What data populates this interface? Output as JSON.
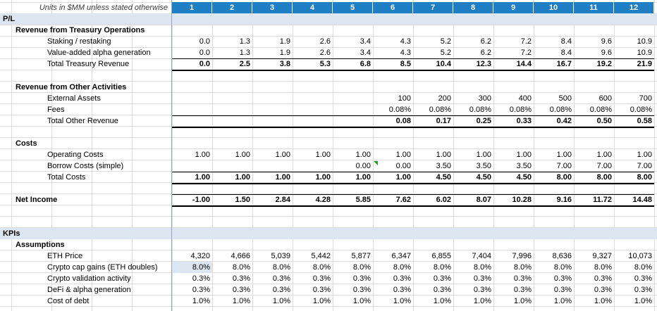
{
  "header": {
    "units_label": "Units in $MM unless stated otherwise",
    "columns": [
      "1",
      "2",
      "3",
      "4",
      "5",
      "6",
      "7",
      "8",
      "9",
      "10",
      "11",
      "12"
    ],
    "header_color": "#1f7fc4"
  },
  "pl": {
    "section_label": "P/L",
    "treasury": {
      "title": "Revenue from Treasury Operations",
      "rows": [
        {
          "label": "Staking / restaking",
          "values": [
            "0.0",
            "1.3",
            "1.9",
            "2.6",
            "3.4",
            "4.3",
            "5.2",
            "6.2",
            "7.2",
            "8.4",
            "9.6",
            "10.9"
          ]
        },
        {
          "label": "Value-added alpha generation",
          "values": [
            "0.0",
            "1.3",
            "1.9",
            "2.6",
            "3.4",
            "4.3",
            "5.2",
            "6.2",
            "7.2",
            "8.4",
            "9.6",
            "10.9"
          ]
        },
        {
          "label": "Total Treasury Revenue",
          "values": [
            "0.0",
            "2.5",
            "3.8",
            "5.3",
            "6.8",
            "8.5",
            "10.4",
            "12.3",
            "14.4",
            "16.7",
            "19.2",
            "21.9"
          ]
        }
      ]
    },
    "other": {
      "title": "Revenue from Other Activities",
      "rows": [
        {
          "label": "External Assets",
          "values": [
            "",
            "",
            "",
            "",
            "",
            "100",
            "200",
            "300",
            "400",
            "500",
            "600",
            "700"
          ]
        },
        {
          "label": "Fees",
          "values": [
            "",
            "",
            "",
            "",
            "",
            "0.08%",
            "0.08%",
            "0.08%",
            "0.08%",
            "0.08%",
            "0.08%",
            "0.08%"
          ]
        },
        {
          "label": "Total Other Revenue",
          "values": [
            "",
            "",
            "",
            "",
            "",
            "0.08",
            "0.17",
            "0.25",
            "0.33",
            "0.42",
            "0.50",
            "0.58"
          ]
        }
      ]
    },
    "costs": {
      "title": "Costs",
      "rows": [
        {
          "label": "Operating Costs",
          "values": [
            "1.00",
            "1.00",
            "1.00",
            "1.00",
            "1.00",
            "1.00",
            "1.00",
            "1.00",
            "1.00",
            "1.00",
            "1.00",
            "1.00"
          ]
        },
        {
          "label": "Borrow Costs (simple)",
          "values": [
            "",
            "",
            "",
            "",
            "0.00",
            "0.00",
            "3.50",
            "3.50",
            "3.50",
            "7.00",
            "7.00",
            "7.00"
          ]
        },
        {
          "label": "Total Costs",
          "values": [
            "1.00",
            "1.00",
            "1.00",
            "1.00",
            "1.00",
            "1.00",
            "4.50",
            "4.50",
            "4.50",
            "8.00",
            "8.00",
            "8.00"
          ]
        }
      ]
    },
    "net_income": {
      "label": "Net Income",
      "values": [
        "-1.00",
        "1.50",
        "2.84",
        "4.28",
        "5.85",
        "7.62",
        "6.02",
        "8.07",
        "10.28",
        "9.16",
        "11.72",
        "14.48"
      ]
    }
  },
  "kpis": {
    "section_label": "KPIs",
    "assumptions": {
      "title": "Assumptions",
      "rows": [
        {
          "label": "ETH Price",
          "values": [
            "4,320",
            "4,666",
            "5,039",
            "5,442",
            "5,877",
            "6,347",
            "6,855",
            "7,404",
            "7,996",
            "8,636",
            "9,327",
            "10,073"
          ]
        },
        {
          "label": "Crypto cap gains (ETH doubles)",
          "values": [
            "8.0%",
            "8.0%",
            "8.0%",
            "8.0%",
            "8.0%",
            "8.0%",
            "8.0%",
            "8.0%",
            "8.0%",
            "8.0%",
            "8.0%",
            "8.0%"
          ]
        },
        {
          "label": "Crypto validation activity",
          "values": [
            "0.3%",
            "0.3%",
            "0.3%",
            "0.3%",
            "0.3%",
            "0.3%",
            "0.3%",
            "0.3%",
            "0.3%",
            "0.3%",
            "0.3%",
            "0.3%"
          ]
        },
        {
          "label": "DeFi & alpha generation",
          "values": [
            "0.3%",
            "0.3%",
            "0.3%",
            "0.3%",
            "0.3%",
            "0.3%",
            "0.3%",
            "0.3%",
            "0.3%",
            "0.3%",
            "0.3%",
            "0.3%"
          ]
        },
        {
          "label": "Cost of debt",
          "values": [
            "1.0%",
            "1.0%",
            "1.0%",
            "1.0%",
            "1.0%",
            "1.0%",
            "1.0%",
            "1.0%",
            "1.0%",
            "1.0%",
            "1.0%",
            "1.0%"
          ]
        }
      ]
    }
  }
}
